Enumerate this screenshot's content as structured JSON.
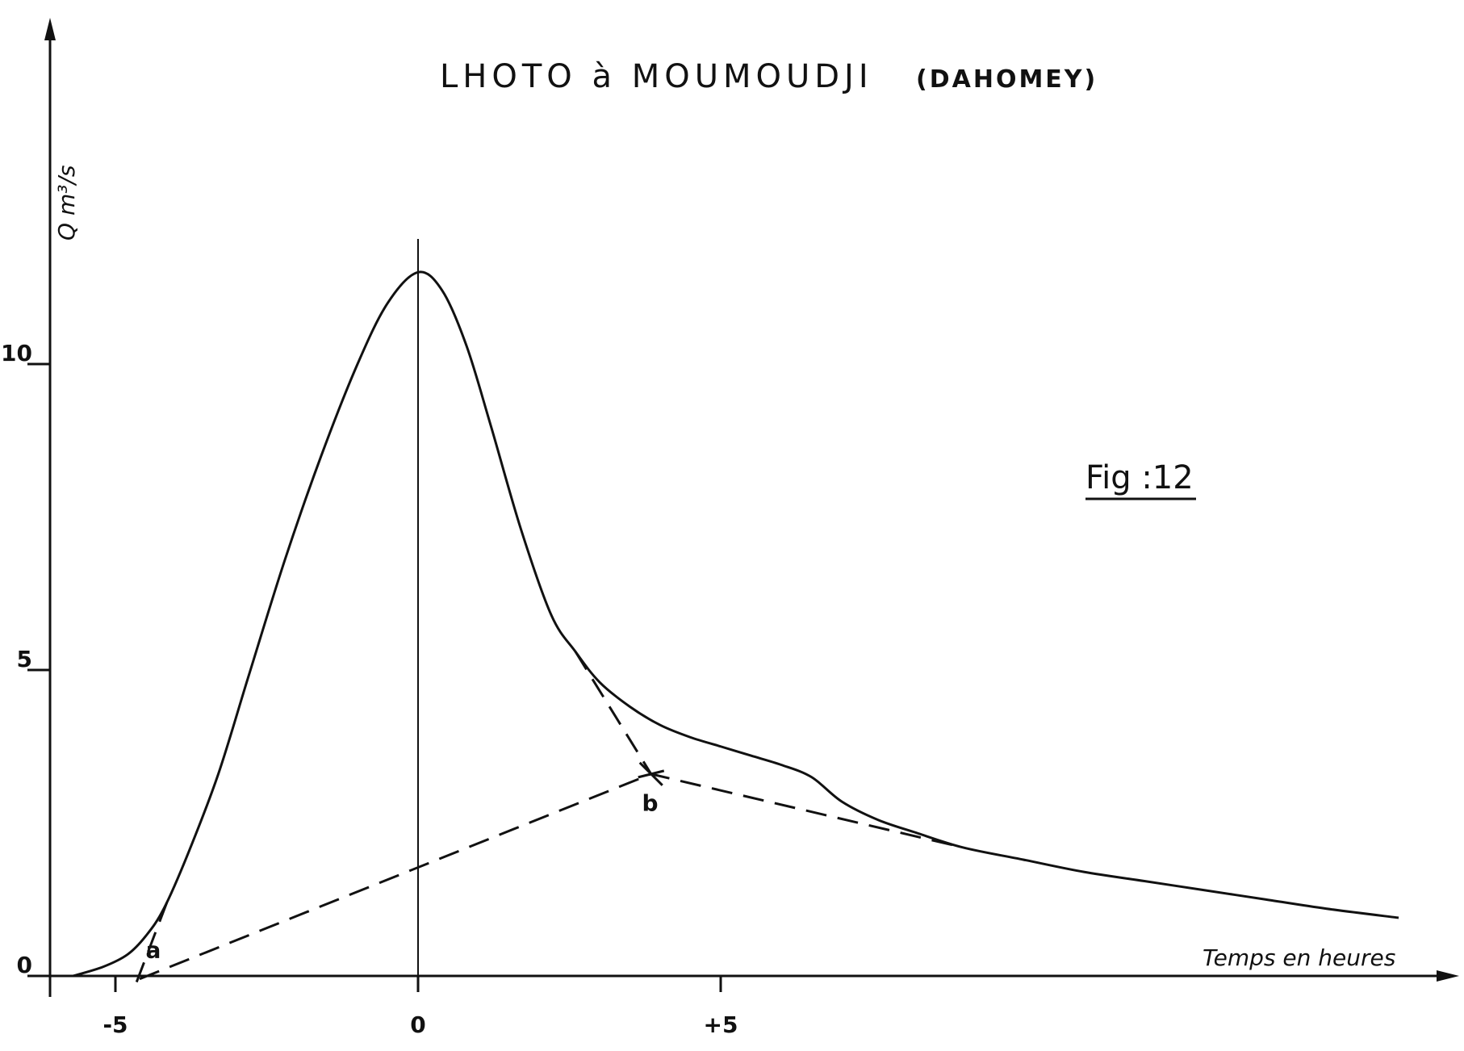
{
  "chart_data": {
    "type": "line",
    "title": "LHOTO à MOUMOUDJI",
    "subtitle": "(DAHOMEY)",
    "figure_label": "Fig :12",
    "xlabel": "Temps en heures",
    "ylabel": "Q m³/s",
    "xlim": [
      -6,
      17
    ],
    "ylim": [
      0,
      15.5
    ],
    "x_ticks": [
      {
        "value": -5,
        "label": "-5"
      },
      {
        "value": 0,
        "label": "0"
      },
      {
        "value": 5,
        "label": "+5"
      }
    ],
    "y_ticks": [
      {
        "value": 0,
        "label": "0"
      },
      {
        "value": 5,
        "label": "5"
      },
      {
        "value": 10,
        "label": "10"
      }
    ],
    "series": [
      {
        "style": "solid",
        "points": [
          [
            -5.7,
            0.0
          ],
          [
            -5.2,
            0.15
          ],
          [
            -4.8,
            0.35
          ],
          [
            -4.5,
            0.65
          ],
          [
            -4.2,
            1.1
          ],
          [
            -3.8,
            2.0
          ],
          [
            -3.3,
            3.3
          ],
          [
            -2.8,
            4.9
          ],
          [
            -2.2,
            6.8
          ],
          [
            -1.6,
            8.5
          ],
          [
            -1.0,
            10.0
          ],
          [
            -0.5,
            11.0
          ],
          [
            0.0,
            11.5
          ],
          [
            0.4,
            11.2
          ],
          [
            0.8,
            10.3
          ],
          [
            1.2,
            9.0
          ],
          [
            1.7,
            7.3
          ],
          [
            2.2,
            5.9
          ],
          [
            2.6,
            5.3
          ],
          [
            3.0,
            4.8
          ],
          [
            3.5,
            4.4
          ],
          [
            4.0,
            4.1
          ],
          [
            4.5,
            3.9
          ],
          [
            5.0,
            3.75
          ],
          [
            5.5,
            3.6
          ],
          [
            6.0,
            3.45
          ],
          [
            6.5,
            3.25
          ],
          [
            7.0,
            2.85
          ],
          [
            7.6,
            2.55
          ],
          [
            8.2,
            2.35
          ],
          [
            9.0,
            2.1
          ],
          [
            10.0,
            1.9
          ],
          [
            11.0,
            1.7
          ],
          [
            12.0,
            1.55
          ],
          [
            13.0,
            1.4
          ],
          [
            14.0,
            1.25
          ],
          [
            15.0,
            1.1
          ],
          [
            16.2,
            0.95
          ]
        ]
      },
      {
        "style": "dashed",
        "points": [
          [
            -4.6,
            -0.05
          ],
          [
            3.85,
            3.3
          ],
          [
            9.0,
            2.1
          ]
        ]
      },
      {
        "style": "dashed",
        "points": [
          [
            2.6,
            5.3
          ],
          [
            3.85,
            3.3
          ]
        ]
      },
      {
        "style": "dashed",
        "points": [
          [
            -4.65,
            -0.1
          ],
          [
            -4.15,
            1.2
          ]
        ]
      }
    ],
    "annotations": [
      {
        "label": "a",
        "x": -4.5,
        "y": 0.3
      },
      {
        "label": "b",
        "x": 3.7,
        "y": 2.7
      }
    ],
    "grid": false,
    "legend": "none"
  }
}
